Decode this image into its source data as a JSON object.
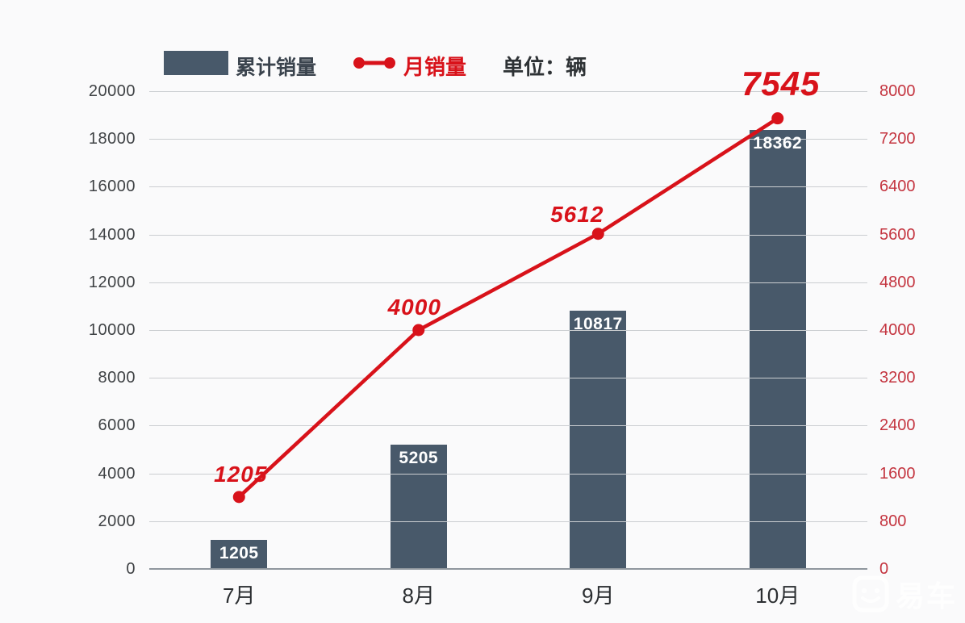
{
  "watermark": {
    "text": "易车"
  },
  "colors": {
    "bar": "#48596A",
    "line": "#D8121A",
    "point_label": "#D8121A",
    "left_axis_text": "#3F4245",
    "right_axis_text": "#C43540",
    "x_axis_text": "#2B2E31",
    "grid": "#CBCED1",
    "axis_line": "#8F979E",
    "background": "#FAFAFB",
    "bar_value_text": "#FFFFFF"
  },
  "chart_data": {
    "type": "bar+line combo",
    "title": "",
    "categories": [
      "7月",
      "8月",
      "9月",
      "10月"
    ],
    "series": [
      {
        "name": "累计销量",
        "type": "bar",
        "axis": "left",
        "values": [
          1205,
          5205,
          10817,
          18362
        ]
      },
      {
        "name": "月销量",
        "type": "line",
        "axis": "right",
        "values": [
          1205,
          4000,
          5612,
          7545
        ]
      }
    ],
    "unit_label": "单位：辆",
    "left_axis": {
      "min": 0,
      "max": 20000,
      "step": 2000,
      "ticks": [
        20000,
        18000,
        16000,
        14000,
        12000,
        10000,
        8000,
        6000,
        4000,
        2000,
        0
      ]
    },
    "right_axis": {
      "min": 0,
      "max": 8000,
      "step": 800,
      "ticks": [
        8000,
        7200,
        6400,
        5600,
        4800,
        4000,
        3200,
        2400,
        1600,
        800,
        0
      ]
    },
    "grid": true,
    "legend_position": "top"
  }
}
